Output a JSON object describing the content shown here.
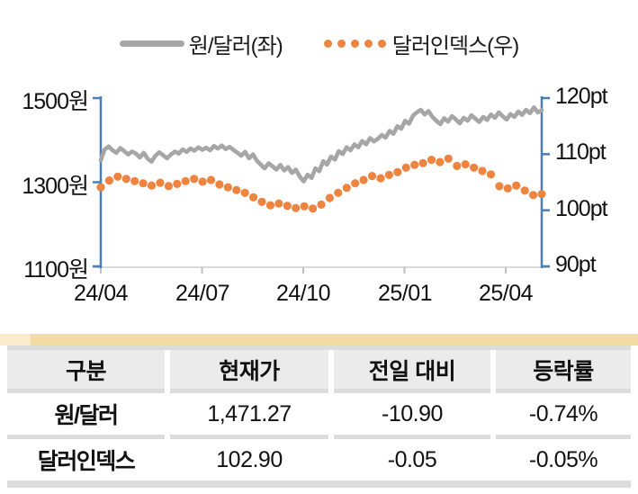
{
  "legend": {
    "series1": "원/달러(좌)",
    "series2": "달러인덱스(우)"
  },
  "colors": {
    "line_gray": "#a6a6a6",
    "dot_orange": "#ed8540",
    "axis_blue": "#4a7ebb",
    "xaxis_gray": "#d9d9d9",
    "xtick_gray": "#bfbfbf",
    "table_header_bg": "#ebebeb",
    "separator_gray": "#dcdcdc",
    "tan_bar": "#f2dca2",
    "tan_bar_light": "#faeccb"
  },
  "chart_data": {
    "type": "line",
    "title": "",
    "xlabel": "",
    "ylabel_left": "원",
    "ylabel_right": "pt",
    "grid": false,
    "legend_position": "top",
    "x_tick_labels": [
      "24/04",
      "24/07",
      "24/10",
      "25/01",
      "25/04"
    ],
    "left_axis": {
      "labels": [
        "1500원",
        "1300원",
        "1100원"
      ],
      "values": [
        1500,
        1300,
        1100
      ],
      "range": [
        1100,
        1500
      ]
    },
    "right_axis": {
      "labels": [
        "120pt",
        "110pt",
        "100pt",
        "90pt"
      ],
      "values": [
        120,
        110,
        100,
        90
      ],
      "range": [
        90,
        120
      ]
    },
    "series": [
      {
        "name": "원/달러(좌)",
        "axis": "left",
        "style": "solid",
        "values": [
          1352,
          1378,
          1385,
          1376,
          1370,
          1381,
          1374,
          1366,
          1373,
          1368,
          1359,
          1370,
          1356,
          1349,
          1363,
          1371,
          1364,
          1357,
          1366,
          1373,
          1368,
          1378,
          1372,
          1380,
          1375,
          1383,
          1377,
          1382,
          1376,
          1386,
          1380,
          1387,
          1379,
          1384,
          1377,
          1370,
          1363,
          1372,
          1357,
          1366,
          1351,
          1342,
          1333,
          1345,
          1338,
          1330,
          1341,
          1328,
          1336,
          1322,
          1330,
          1313,
          1302,
          1318,
          1310,
          1333,
          1326,
          1350,
          1342,
          1361,
          1354,
          1374,
          1367,
          1383,
          1376,
          1390,
          1383,
          1398,
          1390,
          1405,
          1397,
          1403,
          1412,
          1406,
          1422,
          1415,
          1433,
          1427,
          1446,
          1439,
          1458,
          1466,
          1472,
          1461,
          1469,
          1455,
          1446,
          1438,
          1452,
          1444,
          1457,
          1449,
          1440,
          1453,
          1446,
          1459,
          1451,
          1443,
          1455,
          1448,
          1461,
          1453,
          1466,
          1457,
          1449,
          1462,
          1455,
          1468,
          1460,
          1472,
          1464,
          1478,
          1466,
          1471
        ]
      },
      {
        "name": "달러인덱스(우)",
        "axis": "right",
        "style": "dotted",
        "values": [
          104.1,
          105.3,
          106.0,
          105.6,
          105.2,
          104.8,
          104.4,
          104.9,
          104.3,
          104.7,
          105.2,
          105.6,
          105.1,
          105.4,
          104.6,
          104.1,
          103.6,
          103.1,
          102.3,
          101.5,
          100.9,
          101.2,
          100.8,
          100.4,
          100.7,
          100.3,
          101.0,
          102.2,
          103.1,
          104.0,
          104.8,
          105.4,
          106.1,
          105.7,
          106.3,
          106.8,
          107.6,
          108.1,
          108.4,
          109.0,
          108.6,
          109.2,
          107.9,
          108.2,
          107.6,
          107.0,
          106.4,
          104.3,
          103.9,
          104.4,
          103.5,
          102.7,
          102.9
        ]
      }
    ]
  },
  "table": {
    "headers": [
      "구분",
      "현재가",
      "전일 대비",
      "등락률"
    ],
    "rows": [
      {
        "label": "원/달러",
        "cells": [
          "1,471.27",
          "-10.90",
          "-0.74%"
        ]
      },
      {
        "label": "달러인덱스",
        "cells": [
          "102.90",
          "-0.05",
          "-0.05%"
        ]
      }
    ]
  }
}
